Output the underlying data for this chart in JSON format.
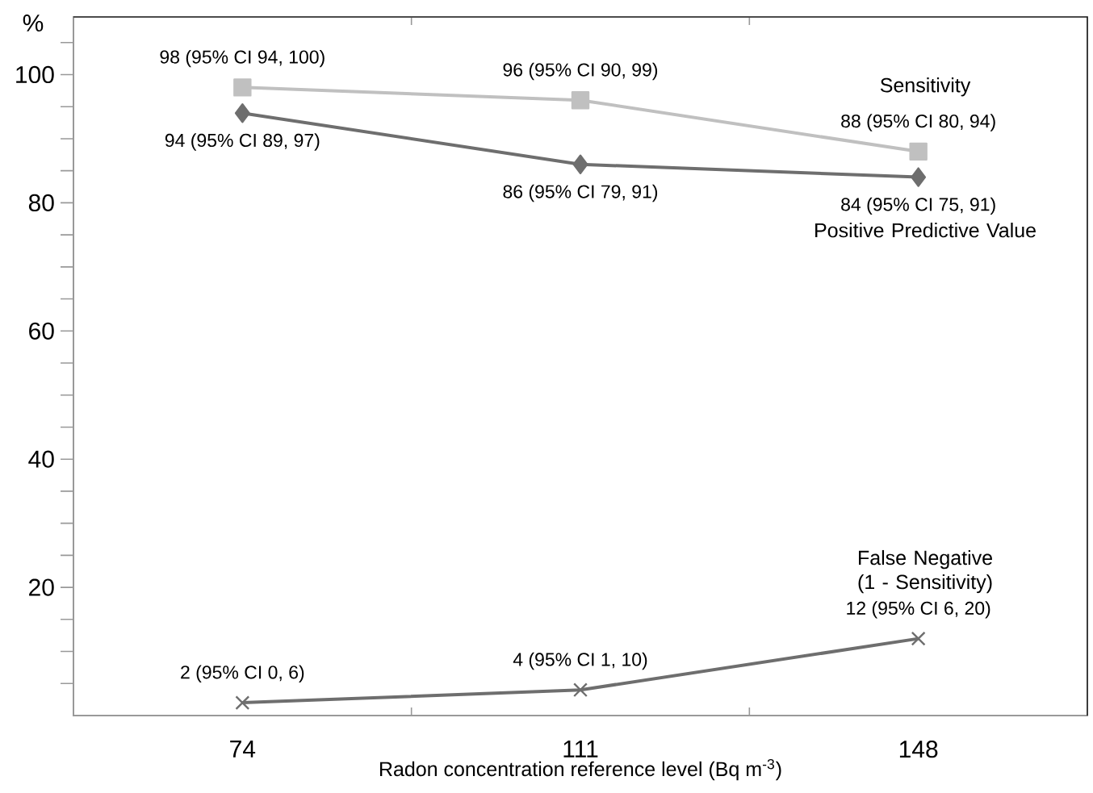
{
  "chart_data": {
    "type": "line",
    "categories": [
      "74",
      "111",
      "148"
    ],
    "xlabel": "Radon concentration reference level (Bq m$^{-3}$)",
    "ylabel": "%",
    "ylim": [
      0,
      109
    ],
    "yticks": [
      {
        "value": 5,
        "label": null
      },
      {
        "value": 10,
        "label": null
      },
      {
        "value": 15,
        "label": null
      },
      20,
      {
        "value": 25,
        "label": null
      },
      {
        "value": 30,
        "label": null
      },
      {
        "value": 35,
        "label": null
      },
      40,
      {
        "value": 45,
        "label": null
      },
      {
        "value": 50,
        "label": null
      },
      {
        "value": 55,
        "label": null
      },
      60,
      {
        "value": 65,
        "label": null
      },
      {
        "value": 70,
        "label": null
      },
      {
        "value": 75,
        "label": null
      },
      80,
      {
        "value": 85,
        "label": null
      },
      {
        "value": 90,
        "label": null
      },
      {
        "value": 95,
        "label": null
      },
      100,
      {
        "value": 105,
        "label": null
      }
    ],
    "grid": false,
    "legend": false,
    "line_style": "solid",
    "series": [
      {
        "name": "Sensitivity",
        "color": "#c0c0c0",
        "marker": "square",
        "values": [
          98,
          96,
          88
        ],
        "value_labels": [
          "98 (95% CI 94, 100)",
          "96 (95% CI 90, 99)",
          "88 (95% CI 80, 94)"
        ]
      },
      {
        "name": "Positive Predictive Value",
        "color": "#6e6e6e",
        "marker": "diamond",
        "values": [
          94,
          86,
          84
        ],
        "value_labels": [
          "94 (95% CI 89, 97)",
          "86 (95% CI 79, 91)",
          "84 (95% CI 75, 91)"
        ]
      },
      {
        "name": "False Negative (1 - Sensitivity)",
        "color": "#6e6e6e",
        "marker": "cross",
        "values": [
          2,
          4,
          12
        ],
        "value_labels": [
          "2 (95% CI 0, 6)",
          "4 (95% CI 1, 10)",
          "12 (95% CI 6, 20)"
        ]
      }
    ]
  }
}
